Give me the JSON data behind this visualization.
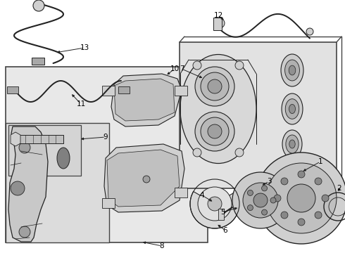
{
  "background_color": "#ffffff",
  "border_color": "#444444",
  "line_color": "#222222",
  "label_color": "#000000",
  "gray_light": "#e8e8e8",
  "gray_mid": "#d0d0d0",
  "gray_dark": "#a8a8a8"
}
